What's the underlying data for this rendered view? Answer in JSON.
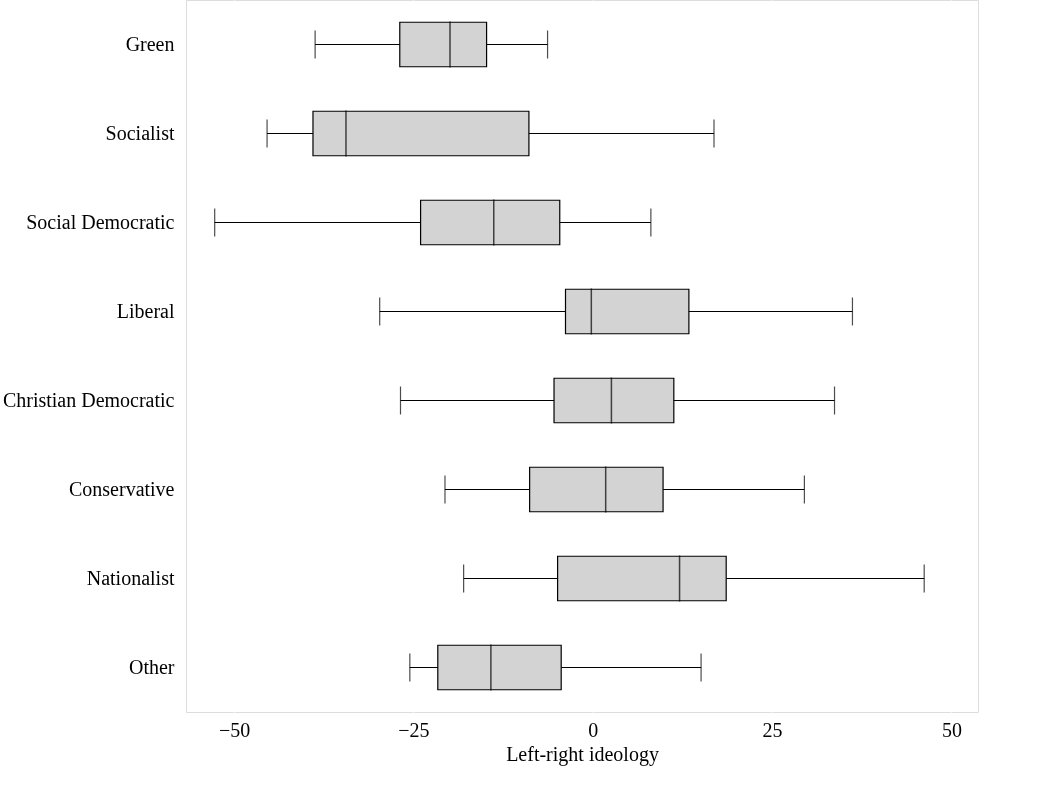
{
  "chart_data": {
    "type": "box",
    "orientation": "horizontal",
    "xlabel": "Left-right ideology",
    "xlim": [
      -56.7,
      53.7
    ],
    "xticks": [
      -50,
      -25,
      0,
      25,
      50
    ],
    "grid": "x",
    "categories": [
      "Green",
      "Socialist",
      "Social Democratic",
      "Liberal",
      "Christian Democratic",
      "Conservative",
      "Nationalist",
      "Other"
    ],
    "series": [
      {
        "color": "#d3d3d3",
        "boxes": [
          {
            "low": -38.7,
            "q1": -26.9,
            "median": -19.9,
            "q3": -14.8,
            "high": -6.3
          },
          {
            "low": -45.4,
            "q1": -39.0,
            "median": -34.4,
            "q3": -8.9,
            "high": 16.9
          },
          {
            "low": -52.7,
            "q1": -24.0,
            "median": -13.8,
            "q3": -4.6,
            "high": 8.1
          },
          {
            "low": -29.7,
            "q1": -3.8,
            "median": -0.2,
            "q3": 13.4,
            "high": 36.2
          },
          {
            "low": -26.8,
            "q1": -5.4,
            "median": 2.6,
            "q3": 11.3,
            "high": 33.7
          },
          {
            "low": -20.6,
            "q1": -8.8,
            "median": 1.8,
            "q3": 9.8,
            "high": 29.5
          },
          {
            "low": -18.0,
            "q1": -4.9,
            "median": 12.1,
            "q3": 18.6,
            "high": 46.2
          },
          {
            "low": -25.5,
            "q1": -21.6,
            "median": -14.2,
            "q3": -4.4,
            "high": 15.1
          }
        ]
      }
    ]
  }
}
